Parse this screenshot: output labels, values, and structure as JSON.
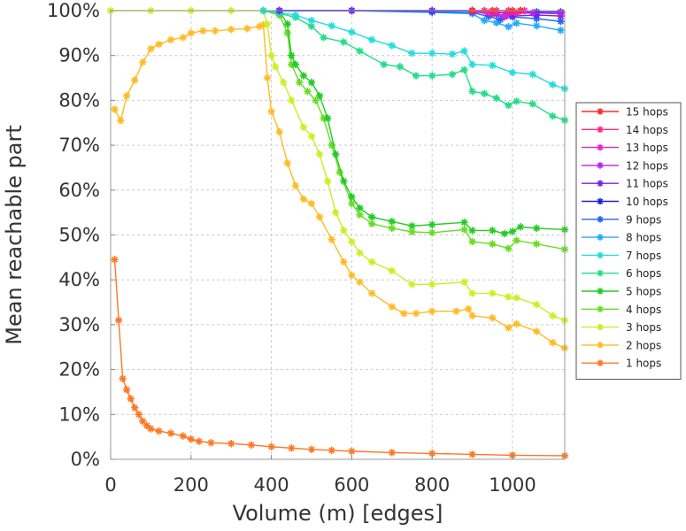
{
  "chart_data": {
    "type": "line",
    "title": "",
    "xlabel": "Volume (m) [edges]",
    "ylabel": "Mean reachable part",
    "xlim": [
      0,
      1130
    ],
    "ylim": [
      0,
      100
    ],
    "x_ticks": [
      0,
      200,
      400,
      600,
      800,
      1000
    ],
    "y_ticks": [
      0,
      10,
      20,
      30,
      40,
      50,
      60,
      70,
      80,
      90,
      100
    ],
    "y_tick_format": "%",
    "grid": true,
    "legend_position": "right",
    "series": [
      {
        "name": "15 hops",
        "color": "#ff2a2a",
        "points": [
          [
            900,
            100
          ],
          [
            950,
            100
          ],
          [
            1000,
            100
          ],
          [
            1020,
            100
          ]
        ]
      },
      {
        "name": "14 hops",
        "color": "#ff2a7f",
        "points": [
          [
            900,
            100
          ],
          [
            930,
            100
          ],
          [
            960,
            100
          ],
          [
            990,
            100
          ],
          [
            1020,
            100
          ]
        ]
      },
      {
        "name": "13 hops",
        "color": "#ee22cc",
        "points": [
          [
            900,
            100
          ],
          [
            940,
            99.5
          ],
          [
            980,
            99
          ],
          [
            1010,
            99.5
          ],
          [
            1030,
            100
          ]
        ]
      },
      {
        "name": "12 hops",
        "color": "#bb22ee",
        "points": [
          [
            900,
            99.8
          ],
          [
            950,
            99.2
          ],
          [
            980,
            98.6
          ],
          [
            1010,
            99.4
          ],
          [
            1050,
            99.5
          ],
          [
            1120,
            99.3
          ]
        ]
      },
      {
        "name": "11 hops",
        "color": "#7722ee",
        "points": [
          [
            420,
            100
          ],
          [
            600,
            100
          ],
          [
            800,
            100
          ],
          [
            900,
            100
          ],
          [
            960,
            99.2
          ],
          [
            1000,
            98.8
          ],
          [
            1060,
            99
          ],
          [
            1120,
            98.8
          ]
        ]
      },
      {
        "name": "10 hops",
        "color": "#1a22dd",
        "points": [
          [
            420,
            100
          ],
          [
            600,
            100
          ],
          [
            800,
            100
          ],
          [
            900,
            100
          ],
          [
            940,
            99.5
          ],
          [
            990,
            99.6
          ],
          [
            1060,
            99.7
          ],
          [
            1120,
            99.7
          ]
        ]
      },
      {
        "name": "9 hops",
        "color": "#2266ee",
        "points": [
          [
            420,
            100
          ],
          [
            600,
            100
          ],
          [
            800,
            99.7
          ],
          [
            900,
            99.6
          ],
          [
            940,
            98.7
          ],
          [
            970,
            98
          ],
          [
            1000,
            98.6
          ],
          [
            1060,
            98.2
          ],
          [
            1120,
            97.6
          ]
        ]
      },
      {
        "name": "8 hops",
        "color": "#22aaff",
        "points": [
          [
            420,
            100
          ],
          [
            600,
            100
          ],
          [
            800,
            99.6
          ],
          [
            900,
            99.3
          ],
          [
            930,
            97.8
          ],
          [
            960,
            97.3
          ],
          [
            990,
            96.4
          ],
          [
            1010,
            97.2
          ],
          [
            1060,
            96.6
          ],
          [
            1120,
            95.6
          ]
        ]
      },
      {
        "name": "7 hops",
        "color": "#22dddd",
        "points": [
          [
            380,
            100
          ],
          [
            420,
            99.6
          ],
          [
            460,
            99
          ],
          [
            500,
            97.8
          ],
          [
            550,
            96.6
          ],
          [
            600,
            95.2
          ],
          [
            650,
            93.5
          ],
          [
            700,
            92.2
          ],
          [
            750,
            90.5
          ],
          [
            800,
            90.5
          ],
          [
            850,
            90.3
          ],
          [
            880,
            91
          ],
          [
            900,
            88
          ],
          [
            950,
            87.8
          ],
          [
            1000,
            86.2
          ],
          [
            1050,
            85.8
          ],
          [
            1100,
            83.5
          ],
          [
            1130,
            82.6
          ]
        ]
      },
      {
        "name": "6 hops",
        "color": "#22dd88",
        "points": [
          [
            380,
            100
          ],
          [
            420,
            99.4
          ],
          [
            460,
            98.5
          ],
          [
            500,
            96.5
          ],
          [
            530,
            94
          ],
          [
            580,
            93
          ],
          [
            620,
            91
          ],
          [
            680,
            88
          ],
          [
            720,
            87.5
          ],
          [
            760,
            85.5
          ],
          [
            800,
            85.5
          ],
          [
            850,
            85.8
          ],
          [
            880,
            86.8
          ],
          [
            900,
            82
          ],
          [
            930,
            81.5
          ],
          [
            960,
            80.5
          ],
          [
            990,
            78.9
          ],
          [
            1010,
            79.8
          ],
          [
            1050,
            79.2
          ],
          [
            1100,
            76.5
          ],
          [
            1130,
            75.6
          ]
        ]
      },
      {
        "name": "5 hops",
        "color": "#22cc22",
        "points": [
          [
            380,
            100
          ],
          [
            420,
            99.8
          ],
          [
            440,
            97
          ],
          [
            450,
            90
          ],
          [
            460,
            88
          ],
          [
            480,
            85.5
          ],
          [
            500,
            84
          ],
          [
            520,
            81
          ],
          [
            540,
            76
          ],
          [
            560,
            68
          ],
          [
            580,
            62
          ],
          [
            600,
            58.5
          ],
          [
            620,
            56
          ],
          [
            650,
            54
          ],
          [
            700,
            53
          ],
          [
            750,
            52
          ],
          [
            800,
            52.3
          ],
          [
            880,
            52.8
          ],
          [
            900,
            51
          ],
          [
            950,
            51
          ],
          [
            980,
            50.3
          ],
          [
            1000,
            50.8
          ],
          [
            1020,
            51.8
          ],
          [
            1060,
            51.5
          ],
          [
            1130,
            51.2
          ]
        ]
      },
      {
        "name": "4 hops",
        "color": "#66dd22",
        "points": [
          [
            380,
            100
          ],
          [
            420,
            99
          ],
          [
            440,
            95
          ],
          [
            450,
            88
          ],
          [
            470,
            84
          ],
          [
            490,
            82
          ],
          [
            510,
            80
          ],
          [
            530,
            76
          ],
          [
            550,
            70
          ],
          [
            570,
            64
          ],
          [
            600,
            57
          ],
          [
            620,
            54.5
          ],
          [
            650,
            52.5
          ],
          [
            700,
            51.5
          ],
          [
            750,
            50.7
          ],
          [
            800,
            50.5
          ],
          [
            880,
            51.2
          ],
          [
            900,
            48.5
          ],
          [
            950,
            48
          ],
          [
            990,
            47
          ],
          [
            1010,
            48.8
          ],
          [
            1060,
            48
          ],
          [
            1130,
            46.8
          ]
        ]
      },
      {
        "name": "3 hops",
        "color": "#ccee22",
        "points": [
          [
            0,
            100
          ],
          [
            100,
            100
          ],
          [
            200,
            100
          ],
          [
            300,
            100
          ],
          [
            380,
            100
          ],
          [
            390,
            97
          ],
          [
            400,
            90
          ],
          [
            410,
            87.5
          ],
          [
            430,
            84
          ],
          [
            450,
            80
          ],
          [
            480,
            74
          ],
          [
            500,
            72
          ],
          [
            520,
            68
          ],
          [
            540,
            62
          ],
          [
            560,
            55
          ],
          [
            580,
            51
          ],
          [
            600,
            48.5
          ],
          [
            620,
            46
          ],
          [
            650,
            44
          ],
          [
            700,
            42
          ],
          [
            750,
            39
          ],
          [
            800,
            39
          ],
          [
            880,
            39.5
          ],
          [
            900,
            37
          ],
          [
            950,
            37
          ],
          [
            990,
            36.2
          ],
          [
            1010,
            36
          ],
          [
            1060,
            34.5
          ],
          [
            1100,
            32
          ],
          [
            1130,
            31
          ]
        ]
      },
      {
        "name": "2 hops",
        "color": "#ffbb22",
        "points": [
          [
            10,
            78
          ],
          [
            25,
            75.5
          ],
          [
            40,
            81
          ],
          [
            60,
            84.5
          ],
          [
            80,
            88.5
          ],
          [
            100,
            91.5
          ],
          [
            120,
            92.5
          ],
          [
            150,
            93.5
          ],
          [
            180,
            94
          ],
          [
            200,
            95
          ],
          [
            230,
            95.5
          ],
          [
            260,
            95.5
          ],
          [
            300,
            95.8
          ],
          [
            340,
            96
          ],
          [
            370,
            96.5
          ],
          [
            380,
            96.8
          ],
          [
            390,
            85
          ],
          [
            400,
            77.5
          ],
          [
            420,
            73
          ],
          [
            440,
            66
          ],
          [
            460,
            61
          ],
          [
            480,
            58
          ],
          [
            500,
            57
          ],
          [
            520,
            54
          ],
          [
            550,
            49
          ],
          [
            580,
            44
          ],
          [
            600,
            41
          ],
          [
            620,
            39.5
          ],
          [
            650,
            37
          ],
          [
            700,
            34
          ],
          [
            730,
            32.5
          ],
          [
            760,
            32.5
          ],
          [
            800,
            33
          ],
          [
            860,
            33
          ],
          [
            890,
            33.5
          ],
          [
            900,
            32
          ],
          [
            950,
            31.5
          ],
          [
            990,
            29.3
          ],
          [
            1010,
            30.2
          ],
          [
            1060,
            28.5
          ],
          [
            1100,
            26
          ],
          [
            1130,
            24.8
          ]
        ]
      },
      {
        "name": "1 hops",
        "color": "#ff7722",
        "points": [
          [
            10,
            44.5
          ],
          [
            20,
            31
          ],
          [
            30,
            18
          ],
          [
            40,
            15.5
          ],
          [
            50,
            13.5
          ],
          [
            60,
            11.5
          ],
          [
            70,
            10
          ],
          [
            80,
            8.5
          ],
          [
            90,
            7.5
          ],
          [
            100,
            6.8
          ],
          [
            120,
            6.3
          ],
          [
            150,
            5.8
          ],
          [
            180,
            5.2
          ],
          [
            200,
            4.5
          ],
          [
            220,
            4
          ],
          [
            250,
            3.7
          ],
          [
            300,
            3.5
          ],
          [
            350,
            3.2
          ],
          [
            400,
            2.8
          ],
          [
            450,
            2.5
          ],
          [
            500,
            2.2
          ],
          [
            550,
            2
          ],
          [
            600,
            1.8
          ],
          [
            700,
            1.5
          ],
          [
            800,
            1.3
          ],
          [
            900,
            1.1
          ],
          [
            1000,
            0.9
          ],
          [
            1130,
            0.8
          ]
        ]
      }
    ]
  }
}
